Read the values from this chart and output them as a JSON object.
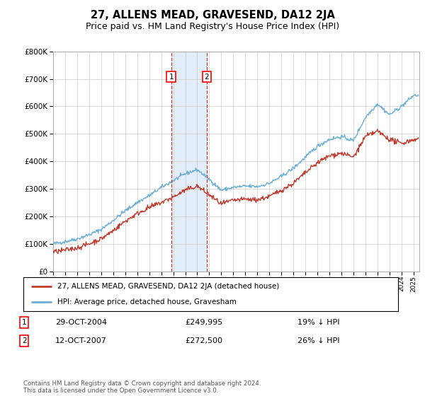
{
  "title": "27, ALLENS MEAD, GRAVESEND, DA12 2JA",
  "subtitle": "Price paid vs. HM Land Registry's House Price Index (HPI)",
  "ylim": [
    0,
    800000
  ],
  "yticks": [
    0,
    100000,
    200000,
    300000,
    400000,
    500000,
    600000,
    700000,
    800000
  ],
  "ytick_labels": [
    "£0",
    "£100K",
    "£200K",
    "£300K",
    "£400K",
    "£500K",
    "£600K",
    "£700K",
    "£800K"
  ],
  "xlim_start": 1995.0,
  "xlim_end": 2025.5,
  "hpi_color": "#6baed6",
  "price_color": "#c0392b",
  "point1_x": 2004.83,
  "point1_y": 249995,
  "point2_x": 2007.79,
  "point2_y": 272500,
  "point1_label": "1",
  "point2_label": "2",
  "point1_date": "29-OCT-2004",
  "point1_price": "£249,995",
  "point1_hpi": "19% ↓ HPI",
  "point2_date": "12-OCT-2007",
  "point2_price": "£272,500",
  "point2_hpi": "26% ↓ HPI",
  "legend_line1": "27, ALLENS MEAD, GRAVESEND, DA12 2JA (detached house)",
  "legend_line2": "HPI: Average price, detached house, Gravesham",
  "footnote": "Contains HM Land Registry data © Crown copyright and database right 2024.\nThis data is licensed under the Open Government Licence v3.0.",
  "background_color": "#ffffff",
  "grid_color": "#cccccc",
  "shaded_region_color": "#dce9f5",
  "title_fontsize": 10.5,
  "subtitle_fontsize": 9
}
